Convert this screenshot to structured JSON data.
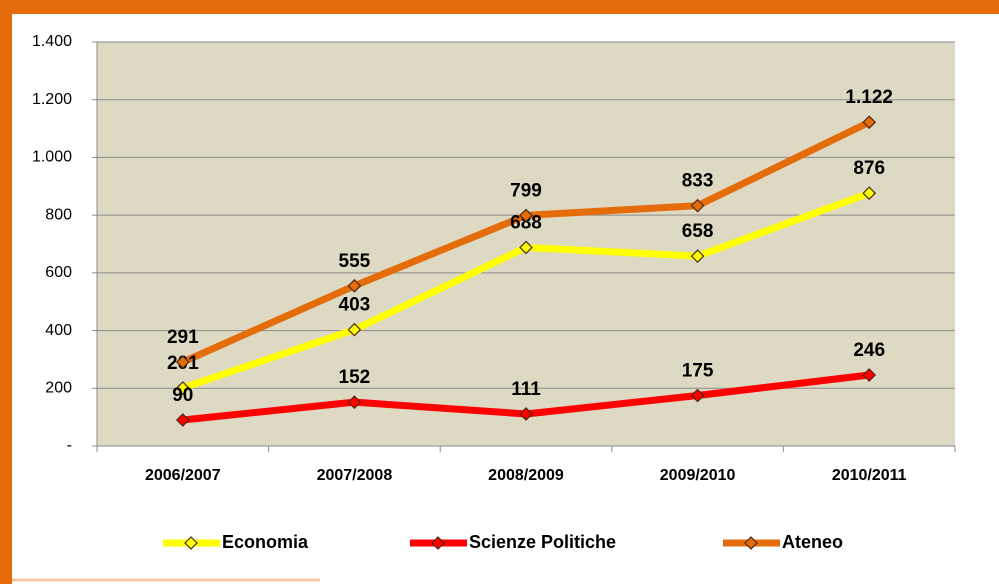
{
  "chart_data": {
    "type": "line",
    "categories": [
      "2006/2007",
      "2007/2008",
      "2008/2009",
      "2009/2010",
      "2010/2011"
    ],
    "series": [
      {
        "name": "Economia",
        "color": "#ffff00",
        "values": [
          201,
          403,
          688,
          658,
          876
        ]
      },
      {
        "name": "Scienze Politiche",
        "color": "#ff0000",
        "values": [
          90,
          152,
          111,
          175,
          246
        ]
      },
      {
        "name": "Ateneo",
        "color": "#e46c0a",
        "values": [
          291,
          555,
          799,
          833,
          1122
        ],
        "value_labels": [
          "291",
          "555",
          "799",
          "833",
          "1.122"
        ]
      }
    ],
    "ylim": [
      0,
      1400
    ],
    "yticks": [
      {
        "value": 0,
        "label": "-"
      },
      200,
      400,
      600,
      800,
      {
        "value": 1000,
        "label": "1.000"
      },
      {
        "value": 1200,
        "label": "1.200"
      },
      {
        "value": 1400,
        "label": "1.400"
      }
    ],
    "grid": true,
    "legend": "bottom"
  }
}
